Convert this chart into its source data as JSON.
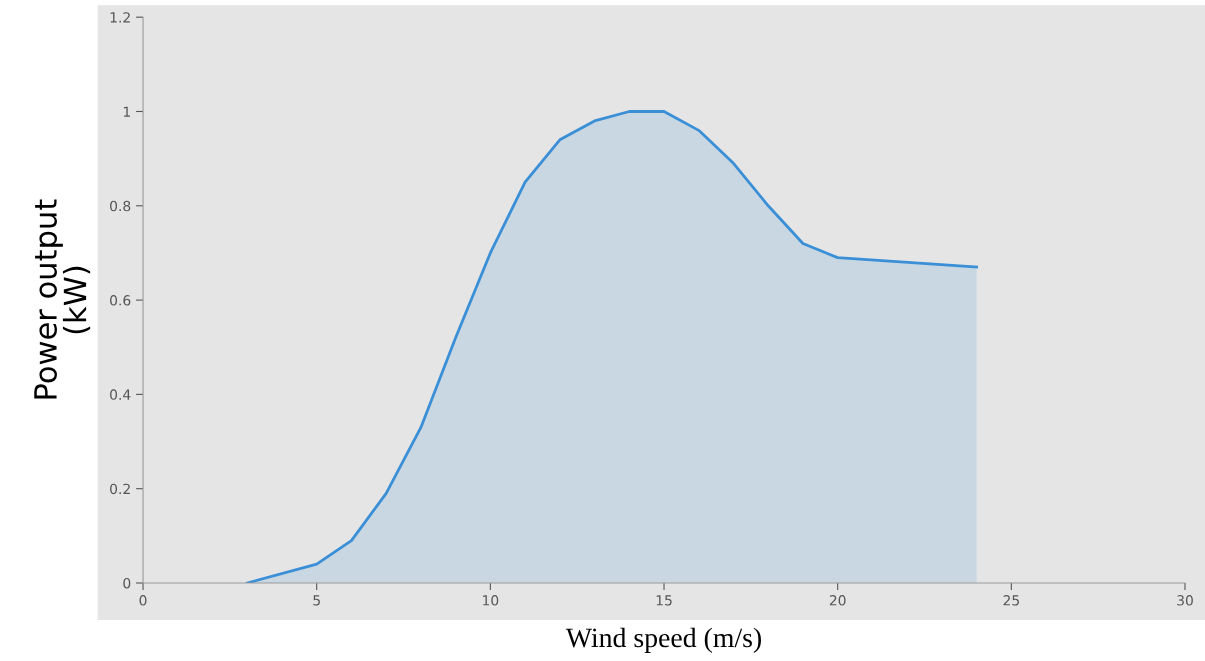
{
  "chart_data": {
    "type": "area",
    "xlabel": "Wind speed (m/s)",
    "ylabel": "Power output\n(kW)",
    "x": [
      3,
      5,
      6,
      7,
      8,
      9,
      10,
      11,
      12,
      13,
      14,
      15,
      16,
      17,
      18,
      19,
      20,
      24
    ],
    "series": [
      {
        "color": "#3a8fd6",
        "values": [
          0,
          0.04,
          0.09,
          0.19,
          0.33,
          0.52,
          0.7,
          0.85,
          0.94,
          0.98,
          1.0,
          1.0,
          0.96,
          0.89,
          0.8,
          0.72,
          0.69,
          0.67
        ]
      }
    ],
    "xlim": [
      0,
      30
    ],
    "ylim": [
      0,
      1.2
    ],
    "xticks": [
      0,
      5,
      10,
      15,
      20,
      25,
      30
    ],
    "yticks": [
      0,
      0.2,
      0.4,
      0.6,
      0.8,
      1,
      1.2
    ],
    "grid": false,
    "legend": false,
    "marker": "none"
  }
}
